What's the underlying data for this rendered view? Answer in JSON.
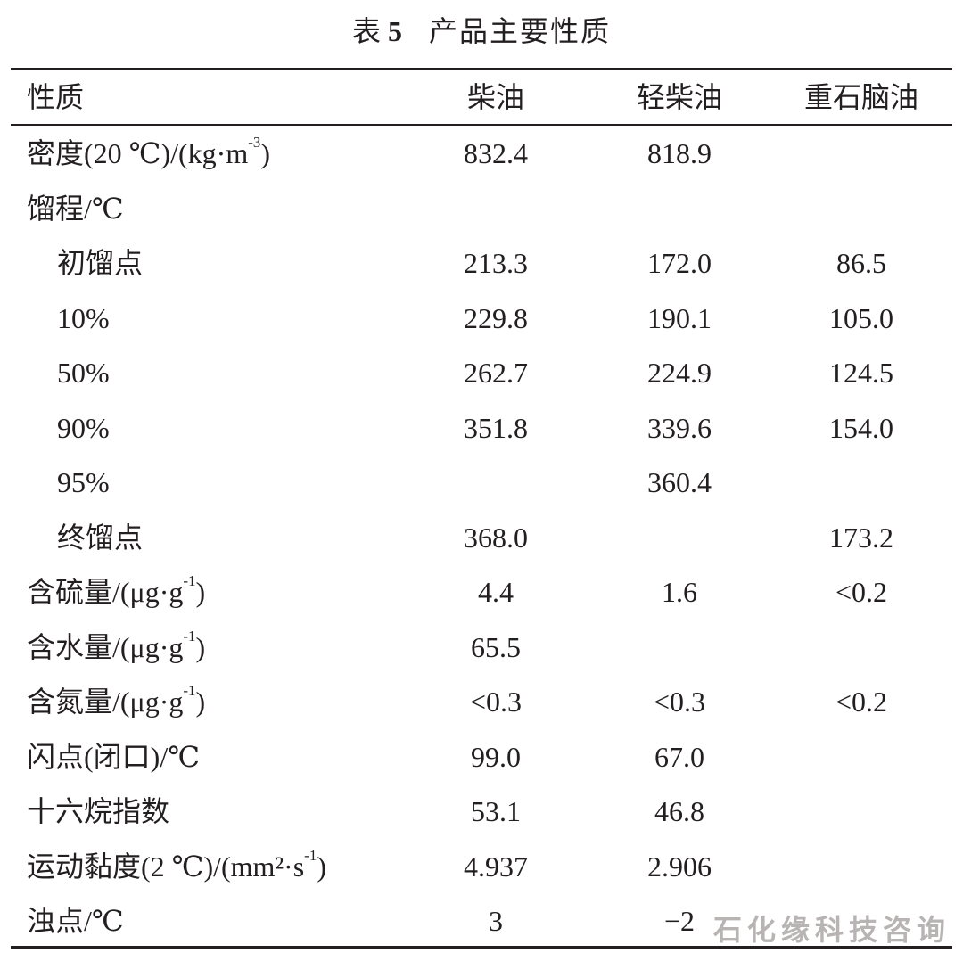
{
  "title": {
    "prefix": "表",
    "number": "5",
    "text": "产品主要性质"
  },
  "header": [
    "性质",
    "柴油",
    "轻柴油",
    "重石脑油"
  ],
  "rows": [
    {
      "label": "密度(20 ℃)/(kg·m",
      "sup": "-3",
      "tail": ")",
      "indent": false,
      "values": [
        "832.4",
        "818.9",
        ""
      ]
    },
    {
      "label": "馏程/℃",
      "sup": "",
      "tail": "",
      "indent": false,
      "values": [
        "",
        "",
        ""
      ]
    },
    {
      "label": "初馏点",
      "sup": "",
      "tail": "",
      "indent": true,
      "values": [
        "213.3",
        "172.0",
        "86.5"
      ]
    },
    {
      "label": "10%",
      "sup": "",
      "tail": "",
      "indent": true,
      "values": [
        "229.8",
        "190.1",
        "105.0"
      ]
    },
    {
      "label": "50%",
      "sup": "",
      "tail": "",
      "indent": true,
      "values": [
        "262.7",
        "224.9",
        "124.5"
      ]
    },
    {
      "label": "90%",
      "sup": "",
      "tail": "",
      "indent": true,
      "values": [
        "351.8",
        "339.6",
        "154.0"
      ]
    },
    {
      "label": "95%",
      "sup": "",
      "tail": "",
      "indent": true,
      "values": [
        "",
        "360.4",
        ""
      ]
    },
    {
      "label": "终馏点",
      "sup": "",
      "tail": "",
      "indent": true,
      "values": [
        "368.0",
        "",
        "173.2"
      ]
    },
    {
      "label": "含硫量/(μg·g",
      "sup": "-1",
      "tail": ")",
      "indent": false,
      "values": [
        "4.4",
        "1.6",
        "<0.2"
      ]
    },
    {
      "label": "含水量/(μg·g",
      "sup": "-1",
      "tail": ")",
      "indent": false,
      "values": [
        "65.5",
        "",
        ""
      ]
    },
    {
      "label": "含氮量/(μg·g",
      "sup": "-1",
      "tail": ")",
      "indent": false,
      "values": [
        "<0.3",
        "<0.3",
        "<0.2"
      ]
    },
    {
      "label": "闪点(闭口)/℃",
      "sup": "",
      "tail": "",
      "indent": false,
      "values": [
        "99.0",
        "67.0",
        ""
      ]
    },
    {
      "label": "十六烷指数",
      "sup": "",
      "tail": "",
      "indent": false,
      "values": [
        "53.1",
        "46.8",
        ""
      ]
    },
    {
      "label": "运动黏度(2 ℃)/(mm²·s",
      "sup": "-1",
      "tail": ")",
      "indent": false,
      "values": [
        "4.937",
        "2.906",
        ""
      ]
    },
    {
      "label": "浊点/℃",
      "sup": "",
      "tail": "",
      "indent": false,
      "values": [
        "3",
        "−2",
        ""
      ]
    }
  ],
  "watermark": "石化缘科技咨询"
}
